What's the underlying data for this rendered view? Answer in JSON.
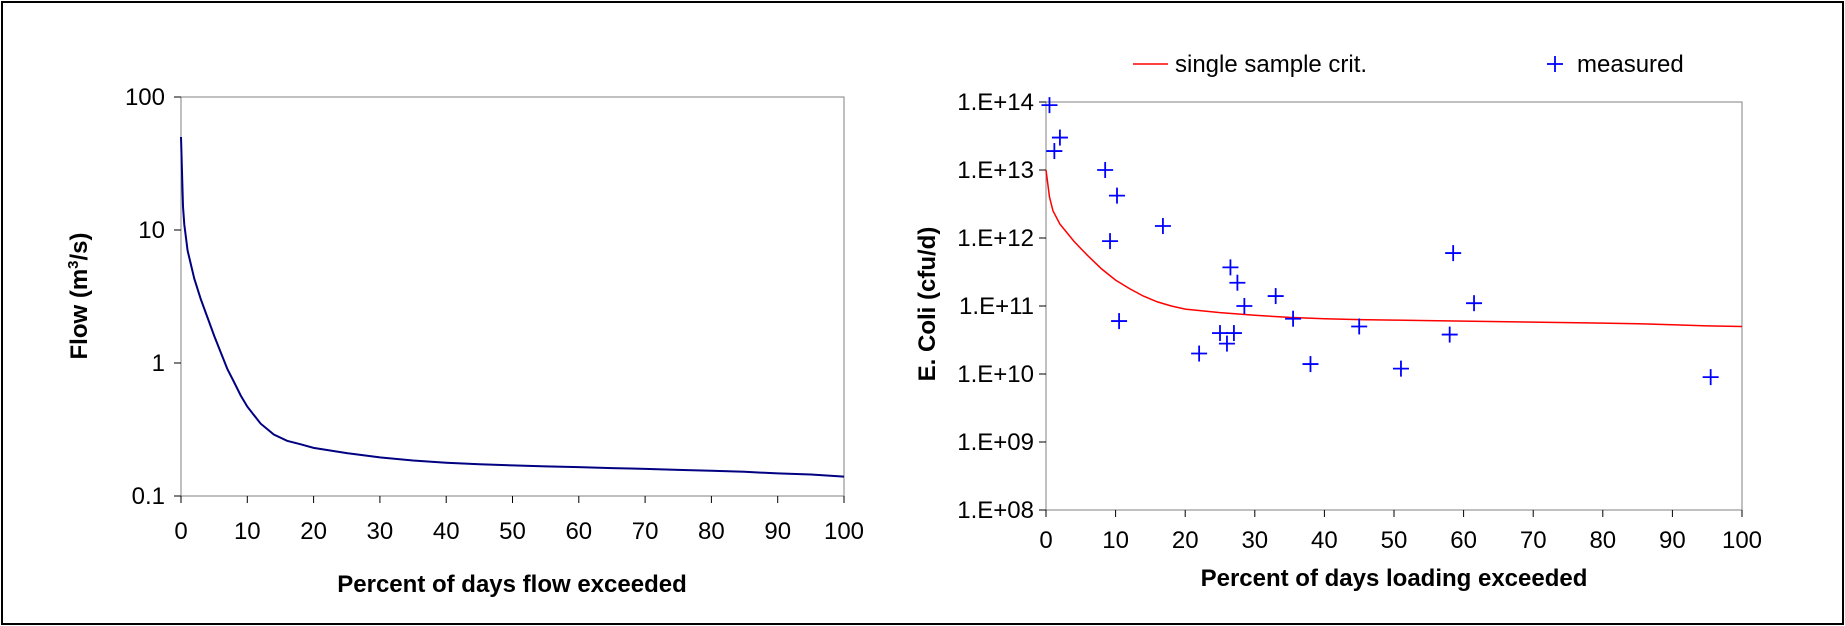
{
  "chart_data": [
    {
      "type": "line",
      "title": "",
      "xlabel": "Percent of days flow exceeded",
      "ylabel_parts": [
        "Flow (m",
        "3",
        "/s)"
      ],
      "xlim": [
        0,
        100
      ],
      "ylim": [
        0.1,
        100
      ],
      "y_scale": "log",
      "grid": false,
      "x_ticks": [
        "0",
        "10",
        "20",
        "30",
        "40",
        "50",
        "60",
        "70",
        "80",
        "90",
        "100"
      ],
      "y_ticks": [
        "0.1",
        "1",
        "10",
        "100"
      ],
      "series": [
        {
          "color": "#000080",
          "x": [
            0,
            0.3,
            0.5,
            1,
            2,
            3,
            4,
            5,
            6,
            7,
            8,
            9,
            10,
            12,
            14,
            16,
            18,
            20,
            25,
            30,
            35,
            40,
            45,
            50,
            55,
            60,
            65,
            70,
            75,
            80,
            85,
            90,
            95,
            100
          ],
          "y": [
            50,
            15,
            11,
            7,
            4.3,
            3.0,
            2.2,
            1.6,
            1.2,
            0.9,
            0.72,
            0.57,
            0.47,
            0.35,
            0.29,
            0.26,
            0.245,
            0.23,
            0.21,
            0.195,
            0.185,
            0.178,
            0.173,
            0.17,
            0.167,
            0.165,
            0.162,
            0.16,
            0.157,
            0.155,
            0.152,
            0.148,
            0.145,
            0.14
          ]
        }
      ]
    },
    {
      "type": "scatter",
      "title": "",
      "xlabel": "Percent of days loading exceeded",
      "ylabel": "E. Coli (cfu/d)",
      "xlim": [
        0,
        100
      ],
      "ylim": [
        100000000.0,
        100000000000000.0
      ],
      "y_scale": "log",
      "grid": false,
      "legend_position": "top",
      "x_ticks": [
        "0",
        "10",
        "20",
        "30",
        "40",
        "50",
        "60",
        "70",
        "80",
        "90",
        "100"
      ],
      "y_ticks": [
        "1.E+08",
        "1.E+09",
        "1.E+10",
        "1.E+11",
        "1.E+12",
        "1.E+13",
        "1.E+14"
      ],
      "series": [
        {
          "name": "single sample crit.",
          "type": "line",
          "color": "#ff0000",
          "x": [
            0,
            0.5,
            1,
            2,
            3,
            4,
            5,
            6,
            8,
            10,
            12,
            14,
            16,
            18,
            20,
            25,
            30,
            35,
            40,
            45,
            50,
            55,
            60,
            65,
            70,
            75,
            80,
            85,
            90,
            95,
            100
          ],
          "y": [
            10000000000000.0,
            4000000000000.0,
            2500000000000.0,
            1600000000000.0,
            1200000000000.0,
            900000000000.0,
            700000000000.0,
            550000000000.0,
            350000000000.0,
            240000000000.0,
            180000000000.0,
            140000000000.0,
            115000000000.0,
            100000000000.0,
            90000000000.0,
            80000000000.0,
            73000000000.0,
            68000000000.0,
            65000000000.0,
            63000000000.0,
            62000000000.0,
            61000000000.0,
            60000000000.0,
            59000000000.0,
            58000000000.0,
            57000000000.0,
            56000000000.0,
            55000000000.0,
            53000000000.0,
            51000000000.0,
            50000000000.0
          ]
        },
        {
          "name": "measured",
          "type": "scatter",
          "color": "#0000ff",
          "x": [
            0.5,
            1.2,
            2,
            8.5,
            9.2,
            10.2,
            10.5,
            16.8,
            22,
            25,
            26,
            26.5,
            27,
            27.5,
            28.5,
            33,
            35.5,
            38,
            45,
            51,
            58,
            58.5,
            61.5,
            95.5
          ],
          "y": [
            90000000000000.0,
            19000000000000.0,
            30000000000000.0,
            10000000000000.0,
            900000000000.0,
            4200000000000.0,
            60000000000.0,
            1500000000000.0,
            20000000000.0,
            40000000000.0,
            28000000000.0,
            370000000000.0,
            40000000000.0,
            220000000000.0,
            100000000000.0,
            140000000000.0,
            65000000000.0,
            14000000000.0,
            50000000000.0,
            12000000000.0,
            38000000000.0,
            600000000000.0,
            110000000000.0,
            9000000000.0
          ]
        }
      ]
    }
  ]
}
